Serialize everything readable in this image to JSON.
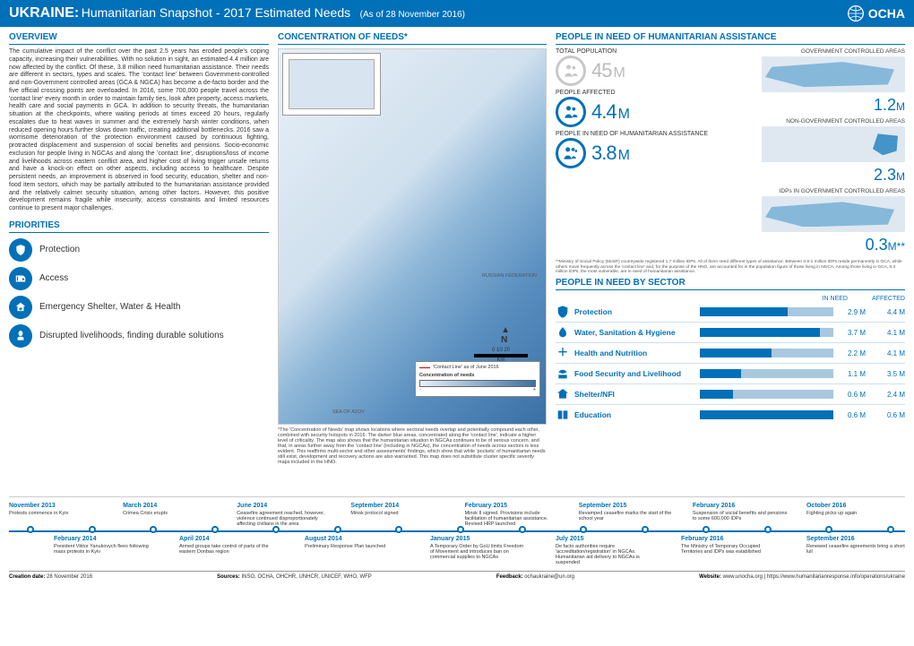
{
  "header": {
    "title": "UKRAINE:",
    "subtitle": "Humanitarian Snapshot - 2017 Estimated Needs",
    "asof": "(As of 28 November 2016)",
    "brand": "OCHA"
  },
  "overview": {
    "title": "OVERVIEW",
    "text": "The cumulative impact of the conflict over the past 2.5 years has eroded people's coping capacity, increasing their vulnerabilities. With no solution in sight, an estimated 4.4 million are now affected by the conflict. Of these, 3.8 million need humanitarian assistance. Their needs are different in sectors, types and scales. The 'contact line' between Government-controlled and non-Government controlled areas (GCA & NGCA) has become a de-facto border and the five official crossing points are overloaded. In 2016, some 700,000 people travel across the 'contact line' every month in order to maintain family ties, look after property, access markets, health care and social payments in GCA. In addition to security threats, the humanitarian situation at the checkpoints, where waiting periods at times exceed 20 hours, regularly escalates due to heat waves in summer and the extremely harsh winter conditions, when reduced opening hours further slows down traffic, creating additional bottlenecks. 2016 saw a worrisome deterioration of the protection environment caused by continuous fighting, protracted displacement and suspension of social benefits and pensions. Socio-economic exclusion for people living in NGCAs and along the 'contact line', disruptions/loss of income and livelihoods across eastern conflict area, and higher cost of living trigger unsafe returns and have a knock-on effect on other aspects, including access to healthcare. Despite persistent needs, an improvement is observed in food security, education, shelter and non-food item sectors, which may be partially attributed to the humanitarian assistance provided and the relatively calmer security situation, among other factors. However, this positive development remains fragile while insecurity, access constraints and limited resources continue to present major challenges."
  },
  "concentration": {
    "title": "CONCENTRATION OF NEEDS*",
    "legend_contact": "'Contact Line' as of June 2016",
    "legend_concentration": "Concentration of needs",
    "scale_label": "0 10 20",
    "scale_unit": "Km",
    "compass": "N",
    "russia": "RUSSIAN FEDERATION",
    "azov": "SEA OF AZOV",
    "footnote": "*The 'Concentration of Needs' map shows locations where sectoral needs overlap and potentially compound each other, combined with security hotspots in 2016. The darker blue areas, concentrated along the 'contact line', indicate a higher level of criticality. The map also shows that the humanitarian situation in NGCAs continues to be of serious concern, and that, in areas further away from the 'contact line' (including in NGCAs), the concentration of needs across sectors is less evident. This reaffirms multi-sector and other assessments' findings, which show that while 'pockets' of humanitarian needs still exist, development and recovery actions are also warranted. This map does not substitute cluster specific severity maps included in the HNO."
  },
  "priorities": {
    "title": "PRIORITIES",
    "items": [
      {
        "label": "Protection"
      },
      {
        "label": "Access"
      },
      {
        "label": "Emergency Shelter, Water & Health"
      },
      {
        "label": "Disrupted livelihoods, finding durable solutions"
      }
    ]
  },
  "pin": {
    "title": "PEOPLE IN NEED OF HUMANITARIAN ASSISTANCE",
    "blocks": [
      {
        "label": "TOTAL POPULATION",
        "value": "45",
        "unit": "M",
        "grey": true
      },
      {
        "label": "PEOPLE AFFECTED",
        "value": "4.4",
        "unit": "M",
        "grey": false
      },
      {
        "label": "PEOPLE IN NEED OF HUMANITARIAN ASSISTANCE",
        "value": "3.8",
        "unit": "M",
        "grey": false
      }
    ],
    "areas": [
      {
        "label": "GOVERNMENT CONTROLLED AREAS",
        "value": "1.2",
        "unit": "M"
      },
      {
        "label": "NON-GOVERNMENT CONTROLLED AREAS",
        "value": "2.3",
        "unit": "M"
      },
      {
        "label": "IDPs IN GOVERNMENT CONTROLLED AREAS",
        "value": "0.3",
        "unit": "M**"
      }
    ],
    "note": "**Ministry of Social Policy (MoSP) countrywide registered 1.7 million IDPs. All of them need different types of assistance. Between 0.8-1 million IDPs reside permanently in GCA, while others move frequently across the 'contact line' and, for the purpose of the HNO, are accounted for in the population figure of those living in NGCA. Among those living in GCA, 0.3 million IDPs, the most vulnerable, are in need of humanitarian assistance."
  },
  "sectors": {
    "title": "PEOPLE IN NEED BY SECTOR",
    "col_need": "IN NEED",
    "col_aff": "AFFECTED",
    "rows": [
      {
        "name": "Protection",
        "need": "2.9 M",
        "aff": "4.4 M",
        "pct": 66
      },
      {
        "name": "Water, Sanitation & Hygiene",
        "need": "3.7 M",
        "aff": "4.1 M",
        "pct": 90
      },
      {
        "name": "Health and Nutrition",
        "need": "2.2 M",
        "aff": "4.1 M",
        "pct": 54
      },
      {
        "name": "Food Security and Livelihood",
        "need": "1.1 M",
        "aff": "3.5 M",
        "pct": 31
      },
      {
        "name": "Shelter/NFI",
        "need": "0.6 M",
        "aff": "2.4 M",
        "pct": 25
      },
      {
        "name": "Education",
        "need": "0.6 M",
        "aff": "0.6 M",
        "pct": 100
      }
    ]
  },
  "timeline": {
    "top": [
      {
        "date": "November 2013",
        "text": "Protests commence in Kyiv"
      },
      {
        "date": "March 2014",
        "text": "Crimea Crisis erupts"
      },
      {
        "date": "June 2014",
        "text": "Ceasefire agreement reached, however, violence continued disproportionately affecting civilians in the area"
      },
      {
        "date": "September 2014",
        "text": "Minsk protocol signed"
      },
      {
        "date": "February 2015",
        "text": "Minsk II signed. Provisions include facilitation of humanitarian assistance. Revised HRP launched"
      },
      {
        "date": "September 2015",
        "text": "Revamped ceasefire marks the start of the school year"
      },
      {
        "date": "February 2016",
        "text": "Suspension of social benefits and pensions to some 600,000 IDPs"
      },
      {
        "date": "October 2016",
        "text": "Fighting picks up again"
      }
    ],
    "bottom": [
      {
        "date": "February 2014",
        "text": "President Viktor Yanukovych flees following mass protests in Kyiv"
      },
      {
        "date": "April 2014",
        "text": "Armed groups take control of parts of the eastern Donbas region"
      },
      {
        "date": "August 2014",
        "text": "Preliminary Response Plan launched"
      },
      {
        "date": "January 2015",
        "text": "A Temporary Order by GoU limits Freedom of Movement and introduces ban on commercial supplies to NGCAs"
      },
      {
        "date": "July 2015",
        "text": "De facto authorities require 'accreditation/registration' in NGCAs. Humanitarian aid delivery to NGCAs is suspended"
      },
      {
        "date": "February 2016",
        "text": "The Ministry of Temporary Occupied Territories and IDPs was established"
      },
      {
        "date": "September 2016",
        "text": "Renewed ceasefire agreements bring a short lull"
      }
    ]
  },
  "footer": {
    "creation_label": "Creation date:",
    "creation": "28 November 2016",
    "sources_label": "Sources:",
    "sources": "INSO, OCHA, OHCHR, UNHCR, UNICEF, WHO, WFP",
    "feedback_label": "Feedback:",
    "feedback": "ochaukraine@un.org",
    "website_label": "Website:",
    "website": "www.unocha.org | https://www.humanitarianresponse.info/operations/ukraine"
  }
}
